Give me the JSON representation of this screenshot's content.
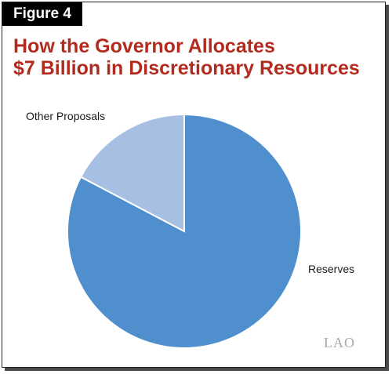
{
  "figure": {
    "tab_label": "Figure 4",
    "title_line1": "How the Governor Allocates",
    "title_line2": "$7 Billion in Discretionary Resources"
  },
  "chart_data": {
    "type": "pie",
    "title": "How the Governor Allocates $7 Billion in Discretionary Resources",
    "slices": [
      {
        "label": "Reserves",
        "value": 82.7,
        "color": "#4f8fcd"
      },
      {
        "label": "Other Proposals",
        "value": 17.3,
        "color": "#a6bfe3"
      }
    ],
    "start": "12 o'clock",
    "direction": "clockwise"
  },
  "logo": {
    "text": "LAO"
  }
}
